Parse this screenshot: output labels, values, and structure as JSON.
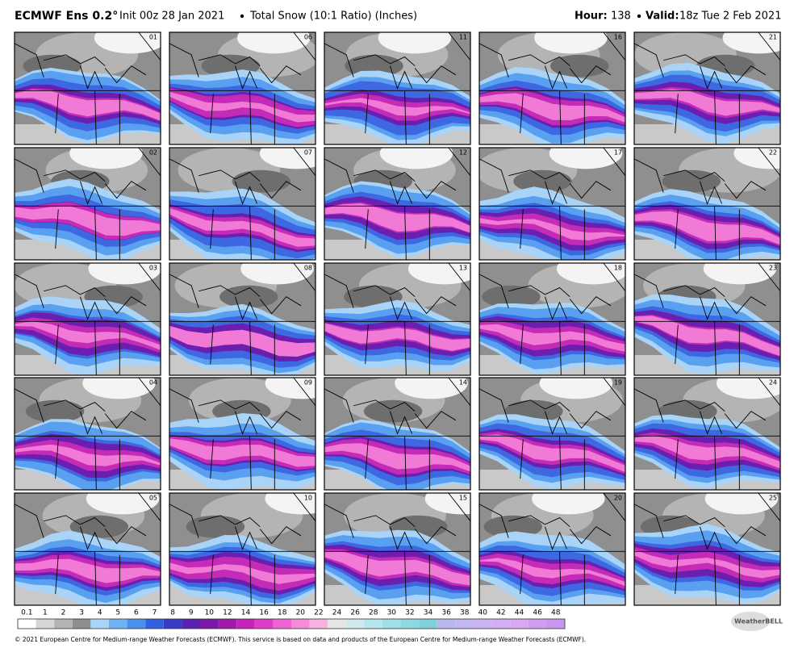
{
  "header": {
    "model": "ECMWF Ens 0.2°",
    "init": "Init 00z 28 Jan 2021",
    "product": "Total Snow (10:1 Ratio) (Inches)",
    "hour_label": "Hour:",
    "hour": "138",
    "valid_label": "Valid:",
    "valid": "18z Tue 2 Feb 2021"
  },
  "panels": [
    {
      "label": "01"
    },
    {
      "label": "02"
    },
    {
      "label": "03"
    },
    {
      "label": "04"
    },
    {
      "label": "05"
    },
    {
      "label": "06"
    },
    {
      "label": "07"
    },
    {
      "label": "08"
    },
    {
      "label": "09"
    },
    {
      "label": "10"
    },
    {
      "label": "11"
    },
    {
      "label": "12"
    },
    {
      "label": "13"
    },
    {
      "label": "14"
    },
    {
      "label": "15"
    },
    {
      "label": "16"
    },
    {
      "label": "17"
    },
    {
      "label": "18"
    },
    {
      "label": "19"
    },
    {
      "label": "20"
    },
    {
      "label": "21"
    },
    {
      "label": "22"
    },
    {
      "label": "23"
    },
    {
      "label": "24"
    },
    {
      "label": "25"
    }
  ],
  "legend": {
    "levels": [
      0.1,
      1,
      2,
      3,
      4,
      5,
      6,
      7,
      8,
      9,
      10,
      12,
      14,
      16,
      18,
      20,
      22,
      24,
      26,
      28,
      30,
      32,
      34,
      36,
      38,
      40,
      42,
      44,
      46,
      48
    ],
    "colors": [
      "#ffffff",
      "#d6d6d6",
      "#b4b4b4",
      "#8e8e8e",
      "#a9d4f7",
      "#6fb2f2",
      "#4a8fea",
      "#3161e0",
      "#3a3ac8",
      "#5a22b0",
      "#7a1aa8",
      "#a01ca8",
      "#c424b8",
      "#e03cc8",
      "#f063d4",
      "#f58ad8",
      "#f7b2e0",
      "#e6e6e6",
      "#cfe9ee",
      "#b4e6ec",
      "#9fe0e6",
      "#8ed8e0",
      "#7fd0d8",
      "#b8b8ec",
      "#c4b8f2",
      "#ccb4f4",
      "#d2aef4",
      "#d8a8f2",
      "#cf9ef0",
      "#c796ee"
    ]
  },
  "footer": "© 2021 European Centre for Medium-range Weather Forecasts (ECMWF). This service is based on data and products of the European Centre for Medium-range Weather Forecasts (ECMWF).",
  "logo": "WeatherBELL"
}
